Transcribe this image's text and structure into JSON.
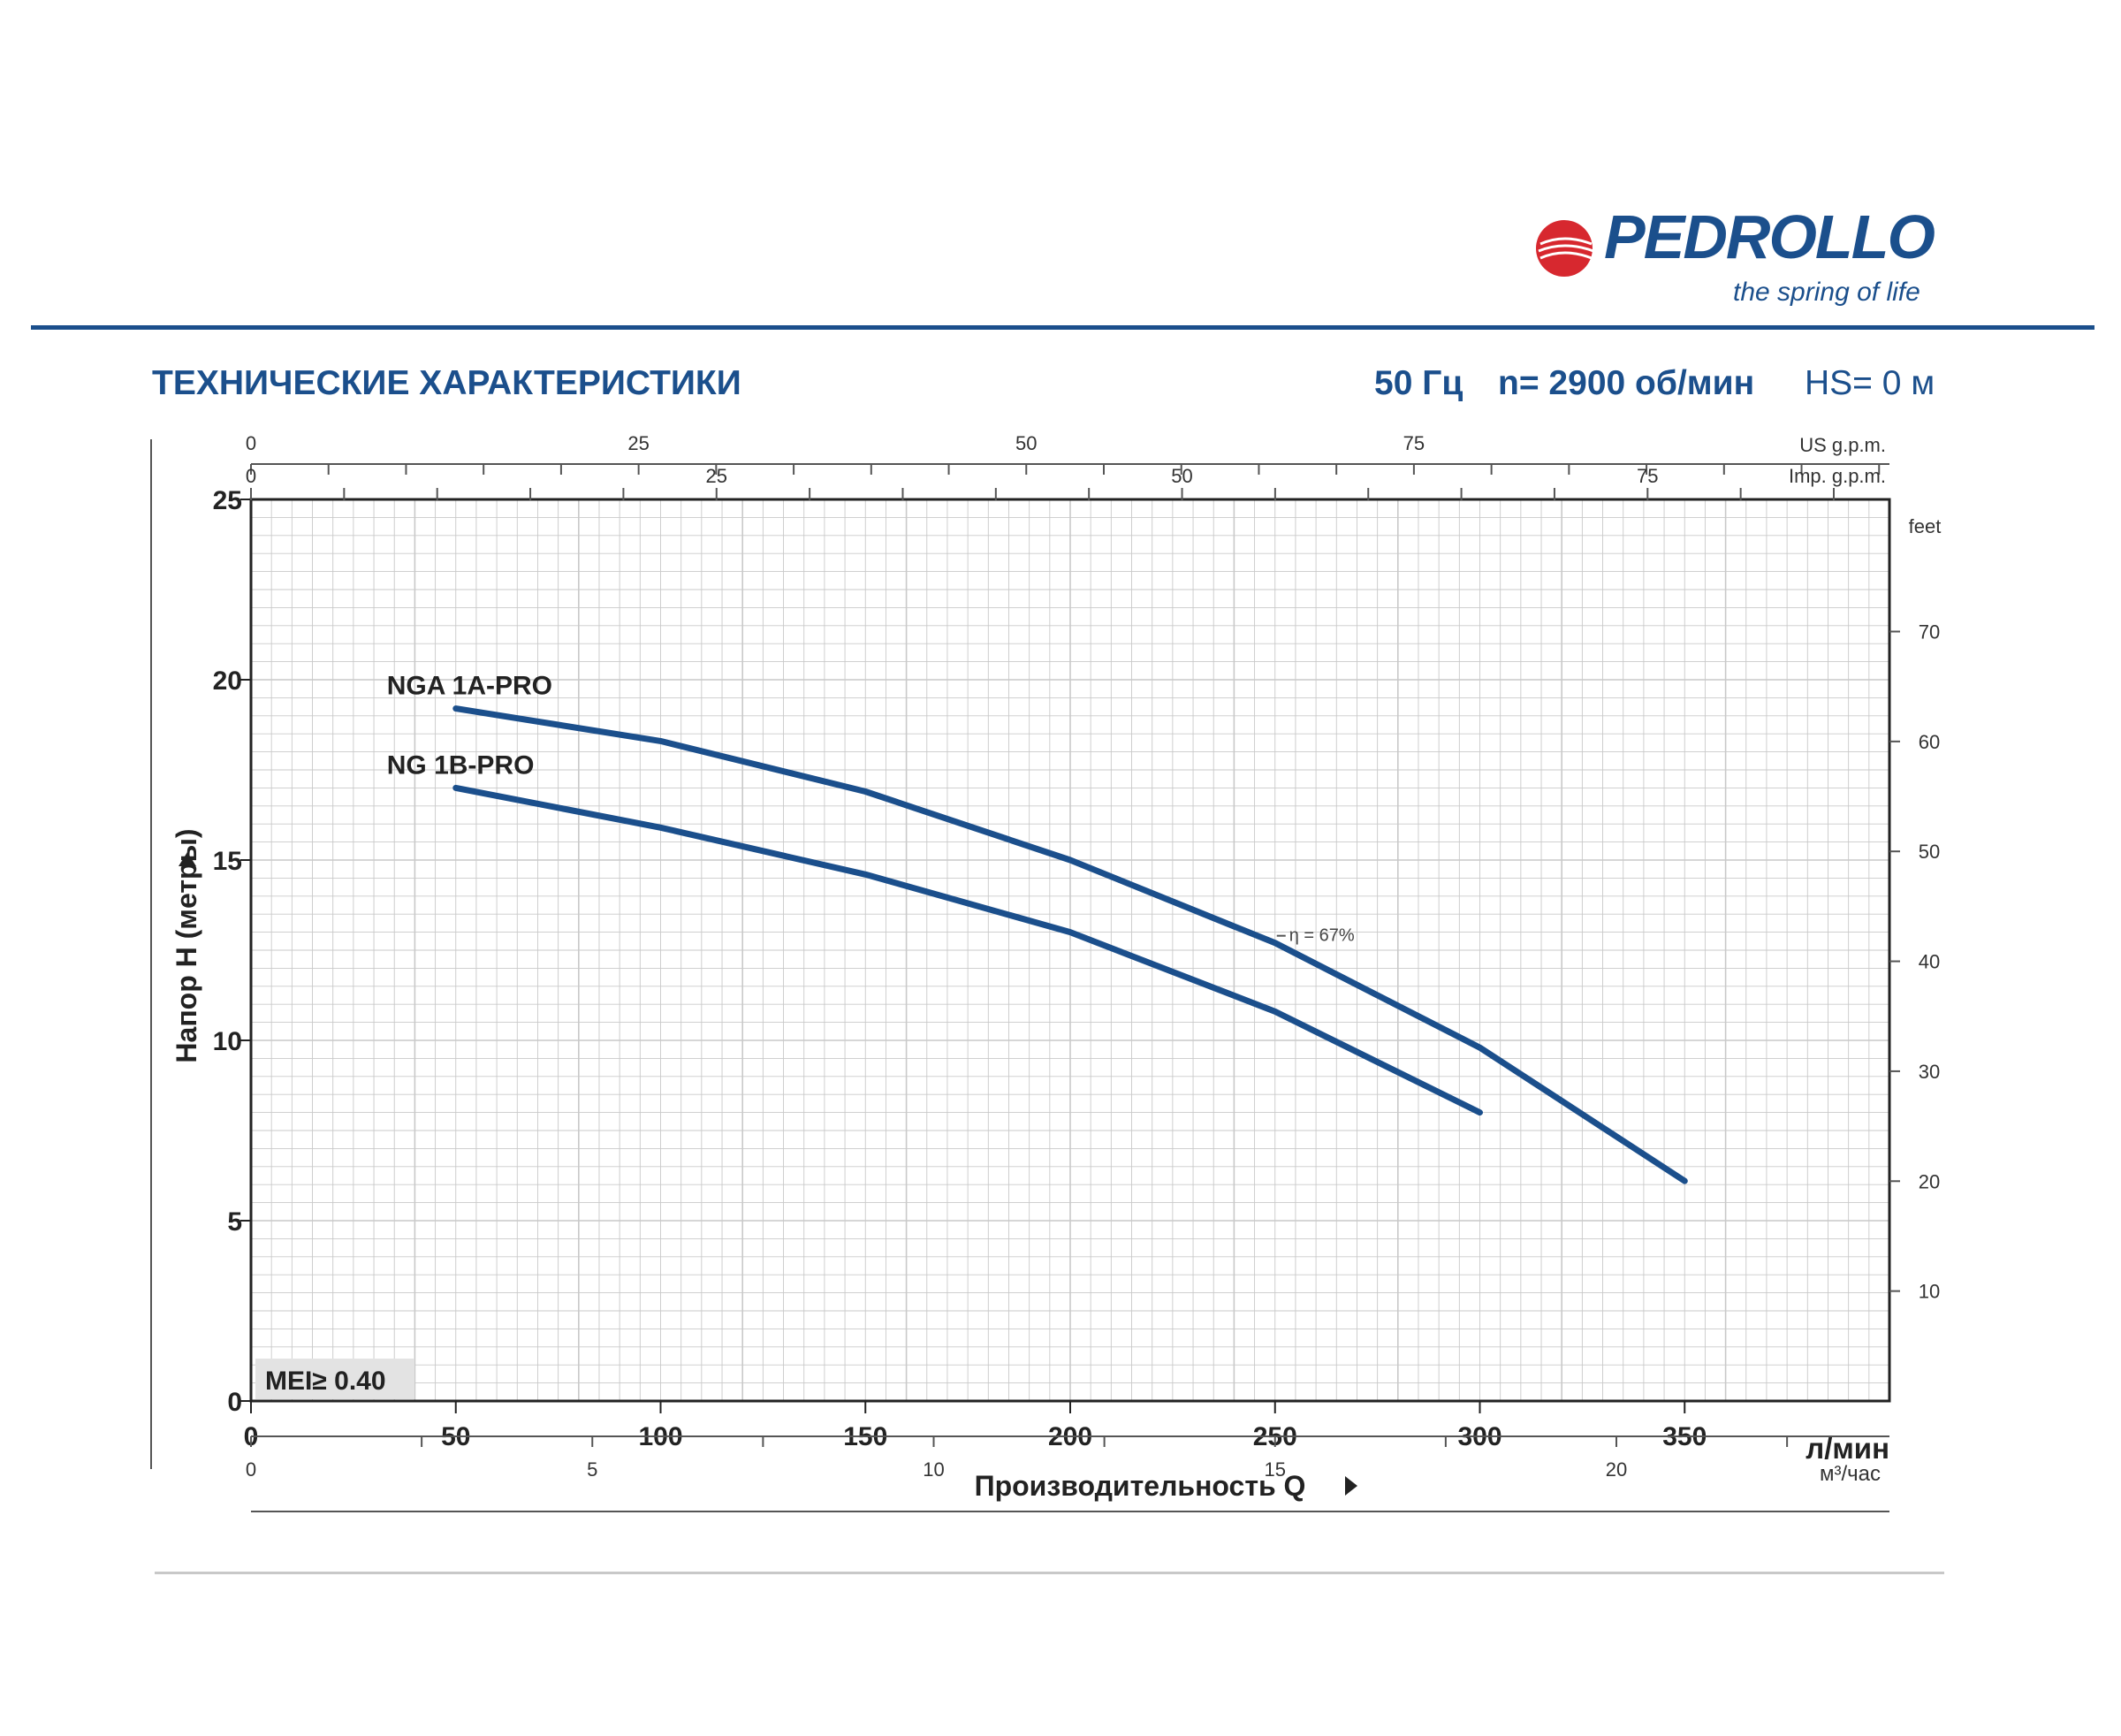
{
  "logo": {
    "wordmark": "PEDROLLO",
    "tagline": "the spring of life",
    "color": "#1b4f8c",
    "accent": "#d7282f"
  },
  "header": {
    "title": "ТЕХНИЧЕСКИЕ ХАРАКТЕРИСТИКИ",
    "frequency": "50 Гц",
    "speed": "n= 2900 об/мин",
    "suction": "HS= 0 м"
  },
  "chart_data": {
    "type": "line",
    "ylabel": "Напор H (метры)",
    "xlabel": "Производительность Q",
    "xunit": "л/мин",
    "x_range": [
      0,
      400
    ],
    "ylim": [
      0,
      25
    ],
    "grid": true,
    "y_ticks": [
      "0",
      "5",
      "10",
      "15",
      "20",
      "25"
    ],
    "x_ticks": [
      "0",
      "50",
      "100",
      "150",
      "200",
      "250",
      "300",
      "350"
    ],
    "secondary_axes": {
      "us_gpm": {
        "label": "US g.p.m.",
        "ticks": [
          "0",
          "25",
          "50",
          "75"
        ]
      },
      "imp_gpm": {
        "label": "Imp. g.p.m.",
        "ticks": [
          "0",
          "25",
          "50",
          "75"
        ]
      },
      "feet": {
        "label": "feet",
        "ticks": [
          "10",
          "20",
          "30",
          "40",
          "50",
          "60",
          "70"
        ]
      },
      "m3h": {
        "label": "м³/час",
        "ticks": [
          "0",
          "5",
          "10",
          "15",
          "20"
        ]
      }
    },
    "series": [
      {
        "name": "NGA 1A-PRO",
        "x": [
          50,
          100,
          150,
          200,
          250,
          300,
          350
        ],
        "y": [
          19.2,
          18.3,
          16.9,
          15.0,
          12.7,
          9.8,
          6.1
        ]
      },
      {
        "name": "NG 1B-PRO",
        "x": [
          50,
          100,
          150,
          200,
          250,
          300
        ],
        "y": [
          17.0,
          15.9,
          14.6,
          13.0,
          10.8,
          8.0
        ]
      }
    ],
    "annotations": {
      "efficiency": "η = 67%",
      "mei": "MEI≥ 0.40"
    },
    "line_color": "#1b4f8c"
  }
}
